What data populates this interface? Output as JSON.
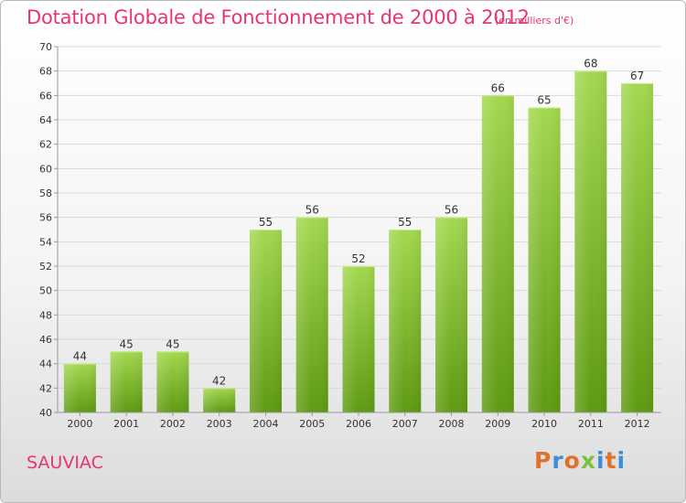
{
  "header": {
    "title": "Dotation Globale de Fonctionnement de 2000 à 2012",
    "subtitle": "(en milliers d'€)"
  },
  "footer": {
    "commune": "SAUVIAC",
    "logo_text": "Proxiti"
  },
  "colors": {
    "title": "#e8356c",
    "bar_light": "#9fd44a",
    "bar_dark": "#5e9a12",
    "grid": "#d9d9d9",
    "axis_text": "#333333",
    "logo_letters": [
      "#e2702a",
      "#3a8fd6",
      "#e2702a",
      "#7bc242",
      "#3a8fd6",
      "#e2702a",
      "#3a8fd6"
    ]
  },
  "chart_data": {
    "type": "bar",
    "title": "Dotation Globale de Fonctionnement de 2000 à 2012",
    "subtitle": "(en milliers d'€)",
    "xlabel": "",
    "ylabel": "",
    "categories": [
      "2000",
      "2001",
      "2002",
      "2003",
      "2004",
      "2005",
      "2006",
      "2007",
      "2008",
      "2009",
      "2010",
      "2011",
      "2012"
    ],
    "values": [
      44,
      45,
      45,
      42,
      55,
      56,
      52,
      55,
      56,
      66,
      65,
      68,
      67
    ],
    "ylim": [
      40,
      70
    ],
    "yticks": [
      40,
      42,
      44,
      46,
      48,
      50,
      52,
      54,
      56,
      58,
      60,
      62,
      64,
      66,
      68,
      70
    ],
    "grid": true,
    "data_labels": true
  }
}
